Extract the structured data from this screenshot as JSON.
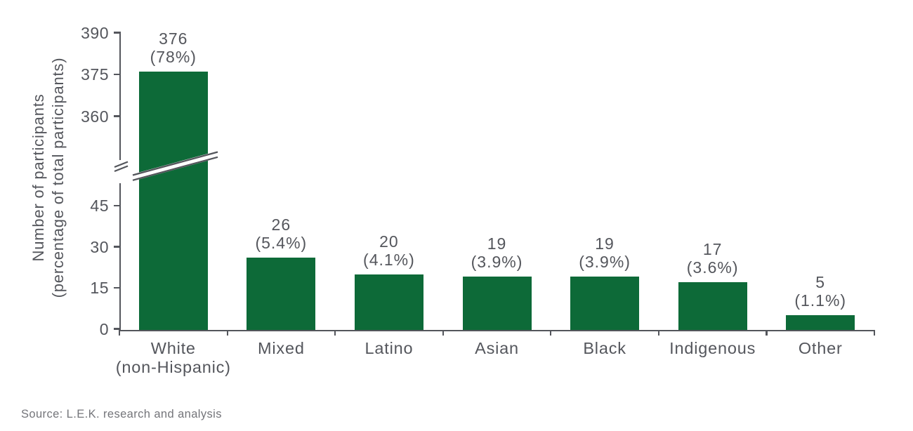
{
  "chart_data": {
    "type": "bar",
    "ylabel_lines": [
      "Number of participants",
      "(percentage of total participants)"
    ],
    "categories": [
      {
        "label_lines": [
          "White",
          "(non-Hispanic)"
        ],
        "value": 376,
        "pct_label": "(78%)"
      },
      {
        "label_lines": [
          "Mixed"
        ],
        "value": 26,
        "pct_label": "(5.4%)"
      },
      {
        "label_lines": [
          "Latino"
        ],
        "value": 20,
        "pct_label": "(4.1%)"
      },
      {
        "label_lines": [
          "Asian"
        ],
        "value": 19,
        "pct_label": "(3.9%)"
      },
      {
        "label_lines": [
          "Black"
        ],
        "value": 19,
        "pct_label": "(3.9%)"
      },
      {
        "label_lines": [
          "Indigenous"
        ],
        "value": 17,
        "pct_label": "(3.6%)"
      },
      {
        "label_lines": [
          "Other"
        ],
        "value": 5,
        "pct_label": "(1.1%)"
      }
    ],
    "yticks_lower": [
      0,
      15,
      30,
      45
    ],
    "yticks_upper": [
      360,
      375,
      390
    ],
    "axis_break": true,
    "ylim_lower": [
      0,
      52
    ],
    "ylim_upper": [
      355,
      390
    ],
    "grid": false,
    "legend": null,
    "xlabel": "",
    "title": ""
  },
  "source_note": "Source: L.E.K. research and analysis",
  "colors": {
    "bar": "#0d6a38",
    "axis": "#54565c",
    "text": "#54565c",
    "source_text": "#74757a",
    "background": "#ffffff"
  }
}
